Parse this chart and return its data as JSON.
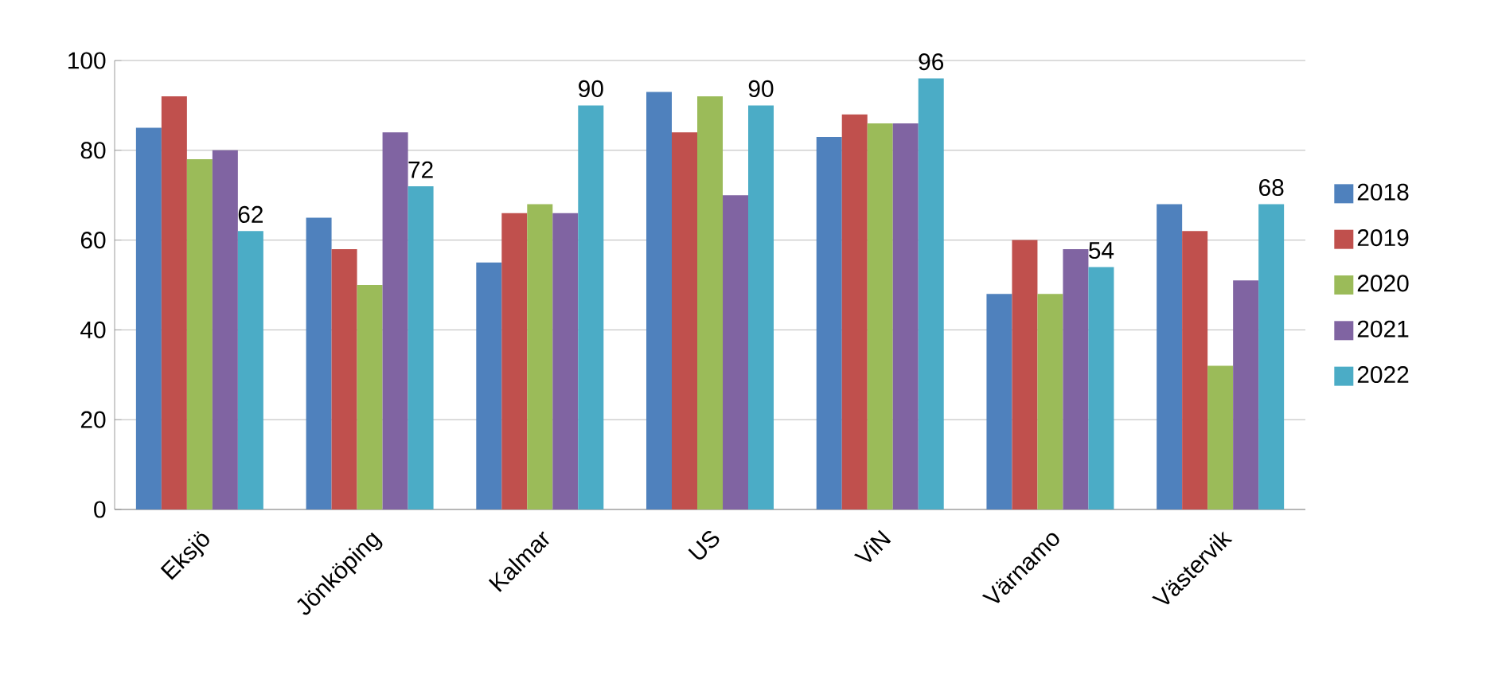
{
  "chart_data": {
    "type": "bar",
    "categories": [
      "Eksjö",
      "Jönköping",
      "Kalmar",
      "US",
      "ViN",
      "Värnamo",
      "Västervik"
    ],
    "series": [
      {
        "name": "2018",
        "color": "#4f81bd",
        "values": [
          85,
          65,
          55,
          93,
          83,
          48,
          68
        ]
      },
      {
        "name": "2019",
        "color": "#c0504d",
        "values": [
          92,
          58,
          66,
          84,
          88,
          60,
          62
        ]
      },
      {
        "name": "2020",
        "color": "#9bbb59",
        "values": [
          78,
          50,
          68,
          92,
          86,
          48,
          32
        ]
      },
      {
        "name": "2021",
        "color": "#8064a2",
        "values": [
          80,
          84,
          66,
          70,
          86,
          58,
          51
        ]
      },
      {
        "name": "2022",
        "color": "#4bacc6",
        "values": [
          62,
          72,
          90,
          90,
          96,
          54,
          68
        ],
        "value_labels": [
          "62",
          "72",
          "90",
          "90",
          "96",
          "54",
          "68"
        ]
      }
    ],
    "ylim": [
      0,
      100
    ],
    "yticks": [
      0,
      20,
      40,
      60,
      80,
      100
    ],
    "grid": "y",
    "legend": "right"
  }
}
